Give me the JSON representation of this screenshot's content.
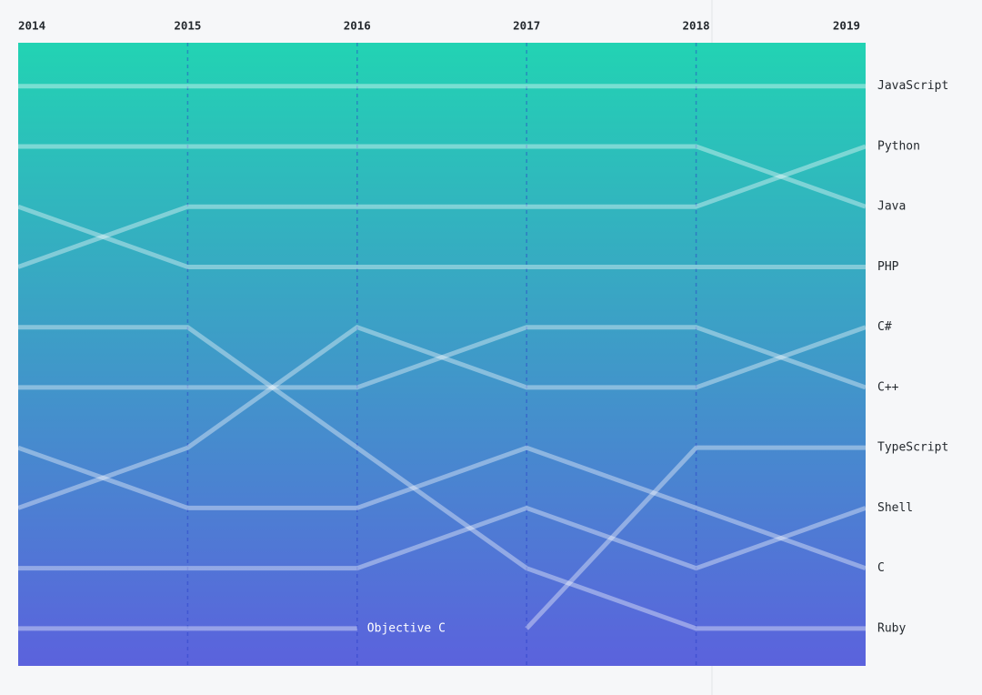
{
  "chart_data": {
    "type": "bump",
    "categories": [
      "2014",
      "2015",
      "2016",
      "2017",
      "2018",
      "2019"
    ],
    "ylim": [
      0.28,
      10.62
    ],
    "line_color": "rgba(255,255,255,0.38)",
    "background": [
      "#22d3b3",
      "#5b62dd"
    ],
    "series": [
      {
        "name": "JavaScript",
        "values": [
          1,
          1,
          1,
          1,
          1,
          1
        ]
      },
      {
        "name": "Python",
        "values": [
          4,
          3,
          3,
          3,
          3,
          2
        ]
      },
      {
        "name": "Java",
        "values": [
          2,
          2,
          2,
          2,
          2,
          3
        ]
      },
      {
        "name": "PHP",
        "values": [
          3,
          4,
          4,
          4,
          4,
          4
        ]
      },
      {
        "name": "C#",
        "values": [
          8,
          7,
          5,
          6,
          6,
          5
        ]
      },
      {
        "name": "C++",
        "values": [
          6,
          6,
          6,
          5,
          5,
          6
        ]
      },
      {
        "name": "TypeScript",
        "values": [
          null,
          null,
          null,
          10,
          7,
          7
        ]
      },
      {
        "name": "Shell",
        "values": [
          9,
          9,
          9,
          8,
          9,
          8
        ]
      },
      {
        "name": "C",
        "values": [
          7,
          8,
          8,
          7,
          8,
          9
        ]
      },
      {
        "name": "Ruby",
        "values": [
          5,
          5,
          7,
          9,
          10,
          10
        ]
      },
      {
        "name": "Objective C",
        "values": [
          10,
          10,
          10,
          null,
          null,
          null
        ]
      }
    ]
  }
}
